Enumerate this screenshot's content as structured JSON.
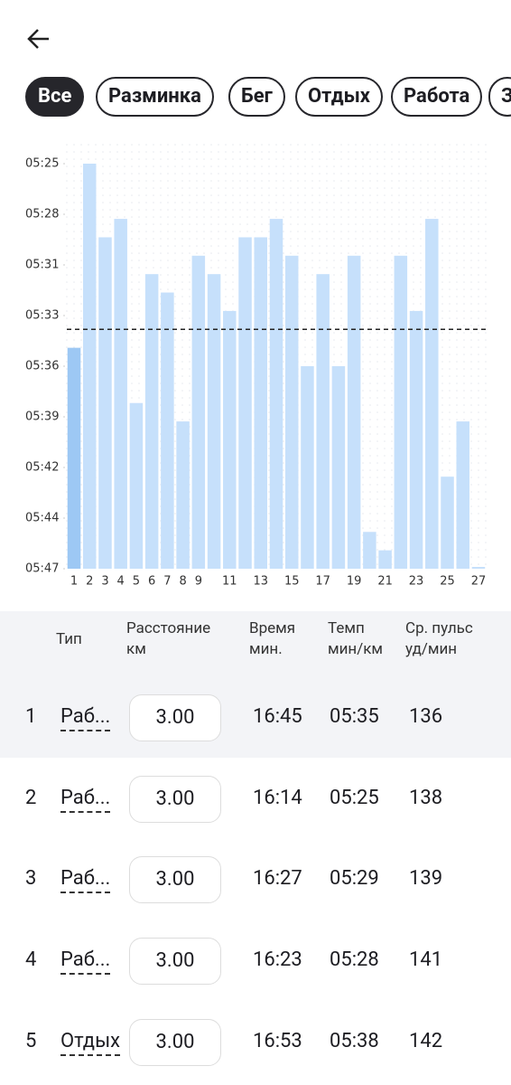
{
  "tabs": [
    "Все",
    "Разминка",
    "Бег",
    "Отдых",
    "Работа",
    "З"
  ],
  "chart_data": {
    "type": "bar",
    "categories": [
      "1",
      "2",
      "3",
      "4",
      "5",
      "6",
      "7",
      "8",
      "9",
      null,
      "11",
      null,
      "13",
      null,
      "15",
      null,
      "17",
      null,
      "19",
      null,
      "21",
      null,
      "23",
      null,
      "25",
      null,
      "27"
    ],
    "series": [
      {
        "color": "#c6e0fb",
        "values": [
          335,
          325,
          329,
          328,
          338,
          331,
          332,
          339,
          330,
          331,
          333,
          329,
          329,
          328,
          330,
          336,
          331,
          336,
          330,
          345,
          346,
          330,
          333,
          328,
          342,
          339,
          347
        ]
      }
    ],
    "selected": 0,
    "selected_color": "#9dc8f4",
    "ylim": [
      347,
      325
    ],
    "yticks": [
      {
        "value": 325,
        "label": "05:25"
      },
      {
        "value": 327.75,
        "label": "05:28"
      },
      {
        "value": 330.5,
        "label": "05:31"
      },
      {
        "value": 333.25,
        "label": "05:33"
      },
      {
        "value": 336,
        "label": "05:36"
      },
      {
        "value": 338.75,
        "label": "05:39"
      },
      {
        "value": 341.5,
        "label": "05:42"
      },
      {
        "value": 344.25,
        "label": "05:44"
      },
      {
        "value": 347,
        "label": "05:47"
      }
    ],
    "reference_line": 334
  },
  "table": {
    "headers": [
      [
        "Тип"
      ],
      [
        "Расстояние",
        "км"
      ],
      [
        "Время",
        "мин."
      ],
      [
        "Темп",
        "мин/км"
      ],
      [
        "Ср. пульс",
        "уд/мин"
      ]
    ],
    "rows": [
      [
        "1",
        "Раб...",
        "3.00",
        "16:45",
        "05:35",
        "136"
      ],
      [
        "2",
        "Раб...",
        "3.00",
        "16:14",
        "05:25",
        "138"
      ],
      [
        "3",
        "Раб...",
        "3.00",
        "16:27",
        "05:29",
        "139"
      ],
      [
        "4",
        "Раб...",
        "3.00",
        "16:23",
        "05:28",
        "141"
      ],
      [
        "5",
        "Отдых",
        "3.00",
        "16:53",
        "05:38",
        "142"
      ]
    ]
  }
}
